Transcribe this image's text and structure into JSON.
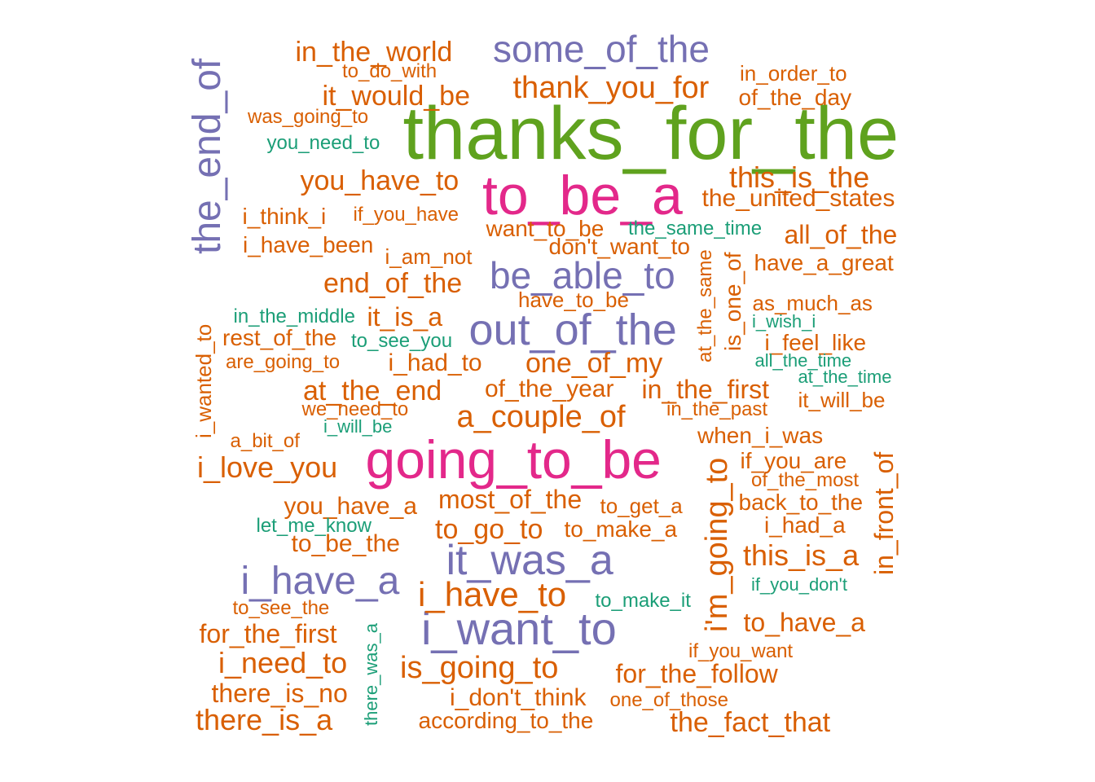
{
  "colors": {
    "green": "#5fa21e",
    "pink": "#e3288a",
    "purple": "#7570b3",
    "orange": "#d95f02",
    "teal": "#1b9e77"
  },
  "words": [
    {
      "text": "thanks_for_the",
      "color": "green"
    },
    {
      "text": "going_to_be",
      "color": "pink"
    },
    {
      "text": "to_be_a",
      "color": "pink"
    },
    {
      "text": "i_want_to",
      "color": "purple"
    },
    {
      "text": "out_of_the",
      "color": "purple"
    },
    {
      "text": "the_end_of",
      "color": "purple"
    },
    {
      "text": "some_of_the",
      "color": "purple"
    },
    {
      "text": "it_was_a",
      "color": "purple"
    },
    {
      "text": "be_able_to",
      "color": "purple"
    },
    {
      "text": "i_have_a",
      "color": "purple"
    },
    {
      "text": "i'm_going_to",
      "color": "orange"
    },
    {
      "text": "i_have_to",
      "color": "orange"
    },
    {
      "text": "a_couple_of",
      "color": "orange"
    },
    {
      "text": "is_going_to",
      "color": "orange"
    },
    {
      "text": "thank_you_for",
      "color": "orange"
    },
    {
      "text": "this_is_the",
      "color": "orange"
    },
    {
      "text": "in_the_world",
      "color": "orange"
    },
    {
      "text": "it_would_be",
      "color": "orange"
    },
    {
      "text": "you_have_to",
      "color": "orange"
    },
    {
      "text": "end_of_the",
      "color": "orange"
    },
    {
      "text": "i_need_to",
      "color": "orange"
    },
    {
      "text": "at_the_end",
      "color": "orange"
    },
    {
      "text": "one_of_my",
      "color": "orange"
    },
    {
      "text": "in_the_first",
      "color": "orange"
    },
    {
      "text": "i_love_you",
      "color": "orange"
    },
    {
      "text": "to_go_to",
      "color": "orange"
    },
    {
      "text": "this_is_a",
      "color": "orange"
    },
    {
      "text": "there_is_a",
      "color": "orange"
    },
    {
      "text": "the_fact_that",
      "color": "orange"
    },
    {
      "text": "in_front_of",
      "color": "orange"
    },
    {
      "text": "is_one_of",
      "color": "orange"
    },
    {
      "text": "all_of_the",
      "color": "orange"
    },
    {
      "text": "the_united_states",
      "color": "orange"
    },
    {
      "text": "most_of_the",
      "color": "orange"
    },
    {
      "text": "to_have_a",
      "color": "orange"
    },
    {
      "text": "for_the_follow",
      "color": "orange"
    },
    {
      "text": "it_is_a",
      "color": "orange"
    },
    {
      "text": "for_the_first",
      "color": "orange"
    },
    {
      "text": "there_is_no",
      "color": "orange"
    },
    {
      "text": "you_have_a",
      "color": "orange"
    },
    {
      "text": "i_had_to",
      "color": "orange"
    },
    {
      "text": "of_the_year",
      "color": "orange"
    },
    {
      "text": "to_be_the",
      "color": "orange"
    },
    {
      "text": "i_don't_think",
      "color": "orange"
    },
    {
      "text": "according_to_the",
      "color": "orange"
    },
    {
      "text": "i_think_i",
      "color": "orange"
    },
    {
      "text": "i_have_been",
      "color": "orange"
    },
    {
      "text": "rest_of_the",
      "color": "orange"
    },
    {
      "text": "don't_want_to",
      "color": "orange"
    },
    {
      "text": "want_to_be",
      "color": "orange"
    },
    {
      "text": "have_a_great",
      "color": "orange"
    },
    {
      "text": "i_feel_like",
      "color": "orange"
    },
    {
      "text": "of_the_day",
      "color": "orange"
    },
    {
      "text": "back_to_the",
      "color": "orange"
    },
    {
      "text": "if_you_are",
      "color": "orange"
    },
    {
      "text": "when_i_was",
      "color": "orange"
    },
    {
      "text": "to_get_a",
      "color": "orange"
    },
    {
      "text": "to_make_a",
      "color": "orange"
    },
    {
      "text": "i_had_a",
      "color": "orange"
    },
    {
      "text": "it_will_be",
      "color": "orange"
    },
    {
      "text": "as_much_as",
      "color": "orange"
    },
    {
      "text": "in_order_to",
      "color": "orange"
    },
    {
      "text": "was_going_to",
      "color": "orange"
    },
    {
      "text": "i_am_not",
      "color": "orange"
    },
    {
      "text": "have_to_be",
      "color": "orange"
    },
    {
      "text": "are_going_to",
      "color": "orange"
    },
    {
      "text": "to_do_with",
      "color": "orange"
    },
    {
      "text": "if_you_have",
      "color": "orange"
    },
    {
      "text": "we_need_to",
      "color": "orange"
    },
    {
      "text": "in_the_past",
      "color": "orange"
    },
    {
      "text": "a_bit_of",
      "color": "orange"
    },
    {
      "text": "to_see_the",
      "color": "orange"
    },
    {
      "text": "if_you_want",
      "color": "orange"
    },
    {
      "text": "one_of_those",
      "color": "orange"
    },
    {
      "text": "of_the_most",
      "color": "orange"
    },
    {
      "text": "i_wanted_to",
      "color": "orange"
    },
    {
      "text": "at_the_same",
      "color": "orange"
    },
    {
      "text": "you_need_to",
      "color": "teal"
    },
    {
      "text": "the_same_time",
      "color": "teal"
    },
    {
      "text": "in_the_middle",
      "color": "teal"
    },
    {
      "text": "to_see_you",
      "color": "teal"
    },
    {
      "text": "i_will_be",
      "color": "teal"
    },
    {
      "text": "let_me_know",
      "color": "teal"
    },
    {
      "text": "to_make_it",
      "color": "teal"
    },
    {
      "text": "if_you_don't",
      "color": "teal"
    },
    {
      "text": "i_wish_i",
      "color": "teal"
    },
    {
      "text": "all_the_time",
      "color": "teal"
    },
    {
      "text": "at_the_time",
      "color": "teal"
    },
    {
      "text": "there_was_a",
      "color": "teal"
    }
  ]
}
